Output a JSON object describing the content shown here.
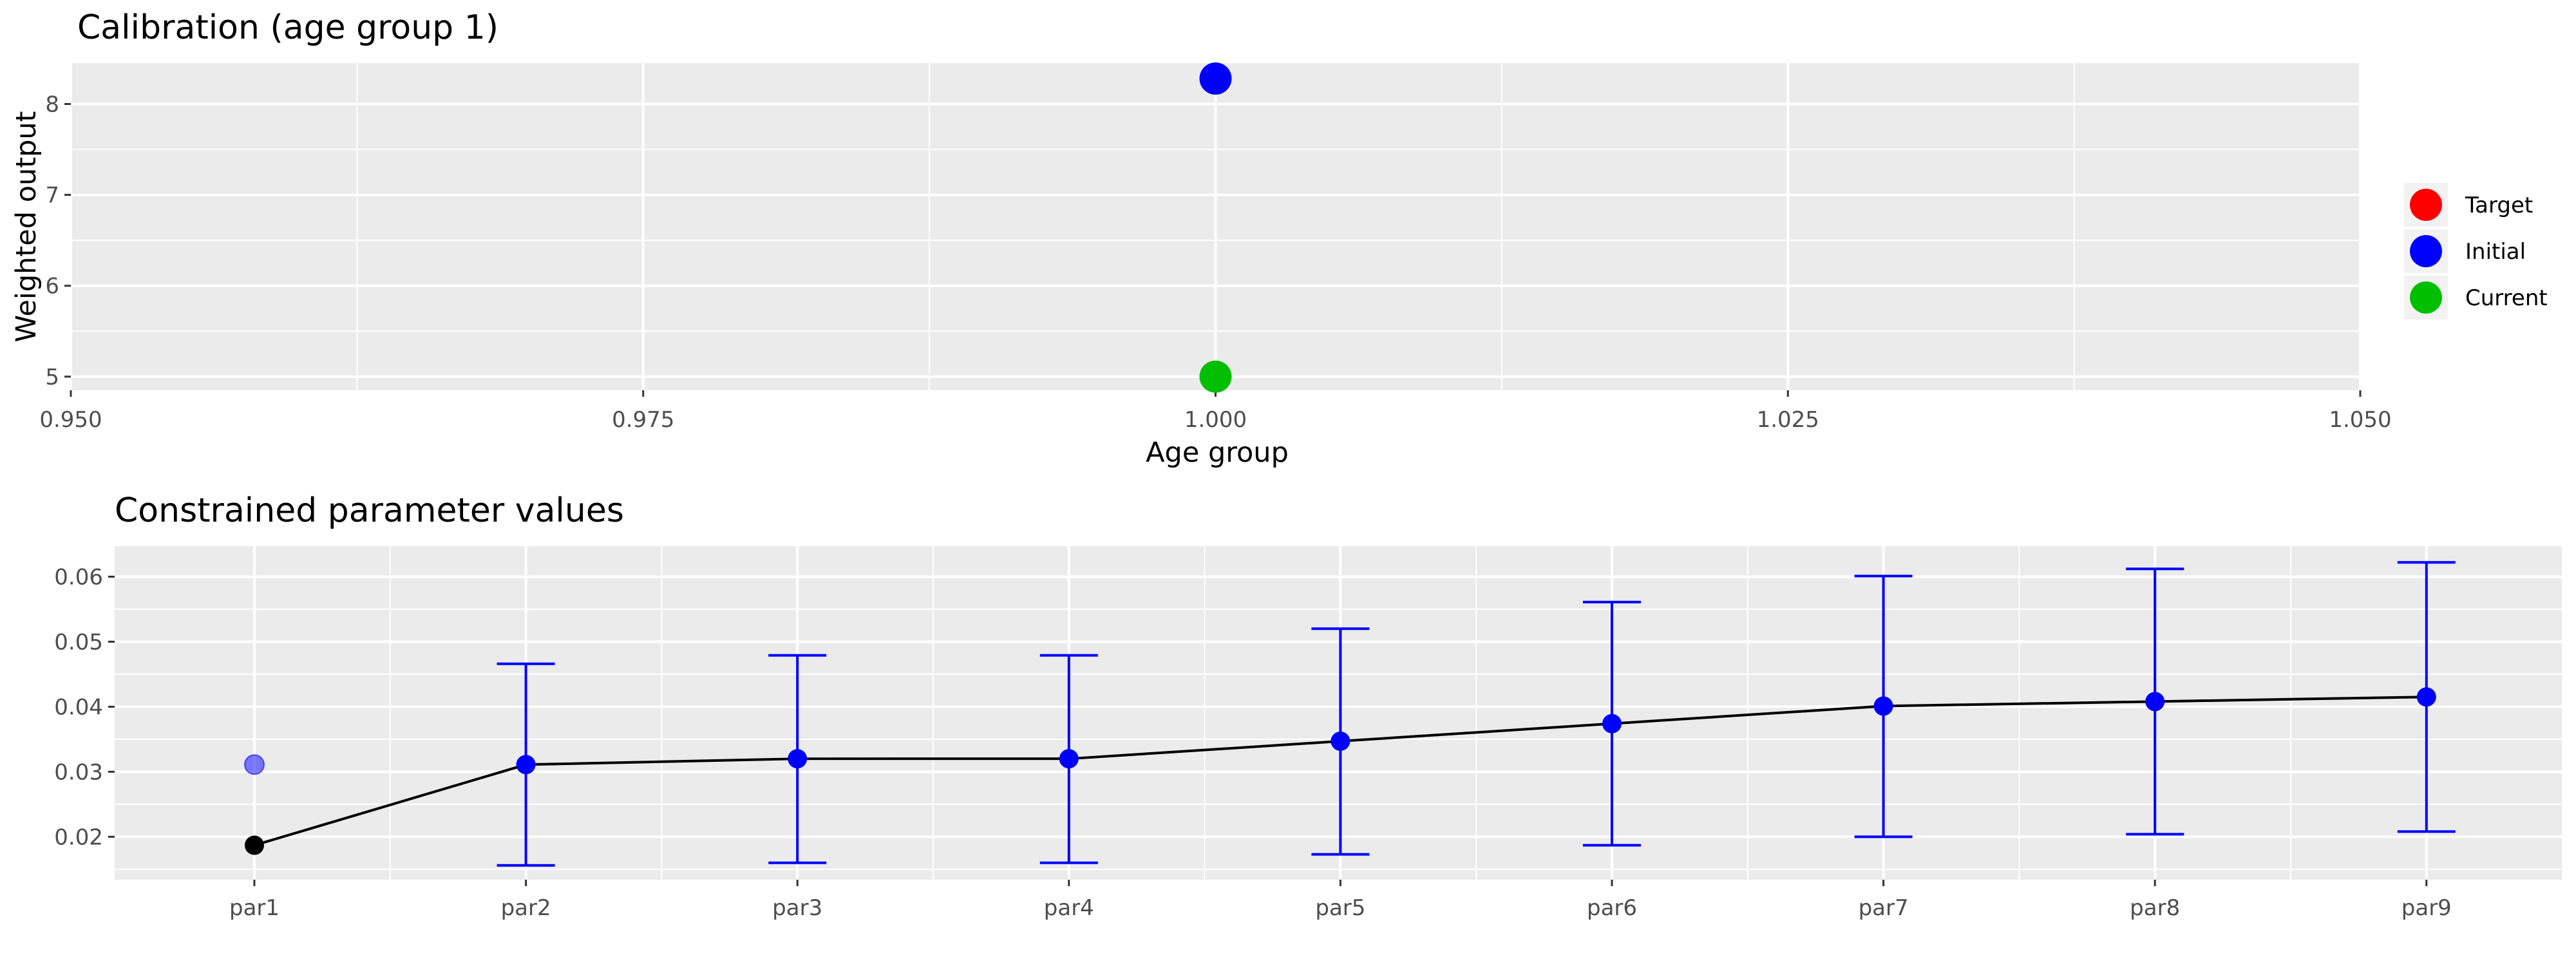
{
  "chart_data": [
    {
      "type": "scatter",
      "title": "Calibration (age group 1)",
      "xlabel": "Age group",
      "ylabel": "Weighted output",
      "xlim": [
        0.95,
        1.05
      ],
      "ylim": [
        4.85,
        8.45
      ],
      "x_ticks": [
        0.95,
        0.975,
        1.0,
        1.025,
        1.05
      ],
      "x_tick_labels": [
        "0.950",
        "0.975",
        "1.000",
        "1.025",
        "1.050"
      ],
      "y_ticks": [
        5,
        6,
        7,
        8
      ],
      "y_tick_labels": [
        "5",
        "6",
        "7",
        "8"
      ],
      "grid": true,
      "legend_position": "right",
      "series": [
        {
          "name": "Target",
          "color": "#ff0000",
          "points": []
        },
        {
          "name": "Initial",
          "color": "#0000ff",
          "points": [
            {
              "x": 1.0,
              "y": 8.28
            }
          ]
        },
        {
          "name": "Current",
          "color": "#00bf00",
          "points": [
            {
              "x": 1.0,
              "y": 5.0
            }
          ]
        }
      ]
    },
    {
      "type": "line",
      "title": "Constrained parameter values",
      "xlabel": "",
      "ylabel": "",
      "categories": [
        "par1",
        "par2",
        "par3",
        "par4",
        "par5",
        "par6",
        "par7",
        "par8",
        "par9"
      ],
      "ylim": [
        0.0134,
        0.0647
      ],
      "y_ticks": [
        0.02,
        0.03,
        0.04,
        0.05,
        0.06
      ],
      "y_tick_labels": [
        "0.02",
        "0.03",
        "0.04",
        "0.05",
        "0.06"
      ],
      "grid": true,
      "current_values": [
        0.0187,
        0.0311,
        0.032,
        0.032,
        0.0347,
        0.0374,
        0.0401,
        0.0408,
        0.0415
      ],
      "initial_value": {
        "category": "par1",
        "value": 0.0311
      },
      "lower_bounds": [
        null,
        0.0156,
        0.016,
        0.016,
        0.0173,
        0.0187,
        0.02,
        0.0204,
        0.0208
      ],
      "upper_bounds": [
        null,
        0.0466,
        0.0479,
        0.0479,
        0.052,
        0.0561,
        0.0601,
        0.0612,
        0.0622
      ],
      "colors": {
        "line": "#000000",
        "point": "#0000ff",
        "first_point": "#000000",
        "error_bar": "#0000ff"
      }
    }
  ]
}
